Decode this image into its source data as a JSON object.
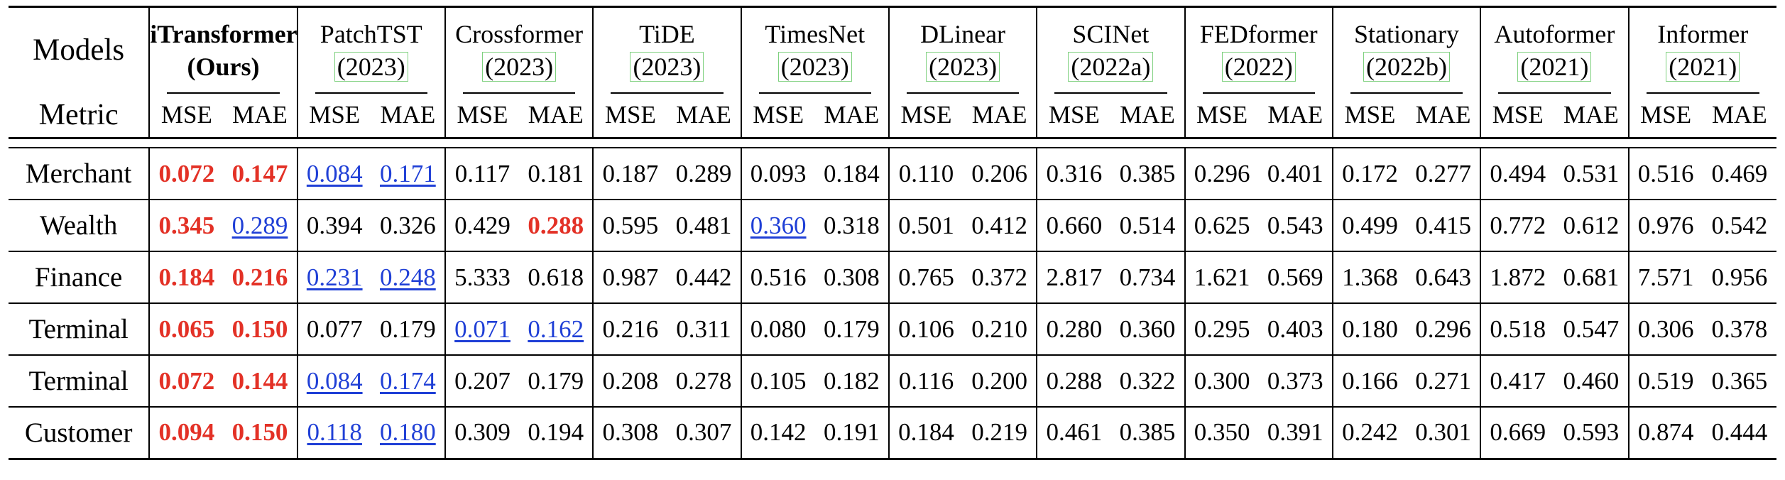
{
  "header": {
    "models_label": "Models",
    "metric_label": "Metric",
    "metric_names": [
      "MSE",
      "MAE"
    ]
  },
  "models": [
    {
      "name": "iTransformer",
      "year": "(Ours)",
      "ours": true
    },
    {
      "name": "PatchTST",
      "year": "(2023)"
    },
    {
      "name": "Crossformer",
      "year": "(2023)"
    },
    {
      "name": "TiDE",
      "year": "(2023)"
    },
    {
      "name": "TimesNet",
      "year": "(2023)"
    },
    {
      "name": "DLinear",
      "year": "(2023)"
    },
    {
      "name": "SCINet",
      "year": "(2022a)"
    },
    {
      "name": "FEDformer",
      "year": "(2022)"
    },
    {
      "name": "Stationary",
      "year": "(2022b)"
    },
    {
      "name": "Autoformer",
      "year": "(2021)"
    },
    {
      "name": "Informer",
      "year": "(2021)"
    }
  ],
  "rows": [
    {
      "dataset": "Merchant",
      "values": [
        "0.072",
        "0.147",
        "0.084",
        "0.171",
        "0.117",
        "0.181",
        "0.187",
        "0.289",
        "0.093",
        "0.184",
        "0.110",
        "0.206",
        "0.316",
        "0.385",
        "0.296",
        "0.401",
        "0.172",
        "0.277",
        "0.494",
        "0.531",
        "0.516",
        "0.469"
      ],
      "styles": [
        "best",
        "best",
        "second",
        "second",
        "",
        "",
        "",
        "",
        "",
        "",
        "",
        "",
        "",
        "",
        "",
        "",
        "",
        "",
        "",
        "",
        "",
        ""
      ]
    },
    {
      "dataset": "Wealth",
      "values": [
        "0.345",
        "0.289",
        "0.394",
        "0.326",
        "0.429",
        "0.288",
        "0.595",
        "0.481",
        "0.360",
        "0.318",
        "0.501",
        "0.412",
        "0.660",
        "0.514",
        "0.625",
        "0.543",
        "0.499",
        "0.415",
        "0.772",
        "0.612",
        "0.976",
        "0.542"
      ],
      "styles": [
        "best",
        "second",
        "",
        "",
        "",
        "best",
        "",
        "",
        "second",
        "",
        "",
        "",
        "",
        "",
        "",
        "",
        "",
        "",
        "",
        "",
        "",
        ""
      ]
    },
    {
      "dataset": "Finance",
      "values": [
        "0.184",
        "0.216",
        "0.231",
        "0.248",
        "5.333",
        "0.618",
        "0.987",
        "0.442",
        "0.516",
        "0.308",
        "0.765",
        "0.372",
        "2.817",
        "0.734",
        "1.621",
        "0.569",
        "1.368",
        "0.643",
        "1.872",
        "0.681",
        "7.571",
        "0.956"
      ],
      "styles": [
        "best",
        "best",
        "second",
        "second",
        "",
        "",
        "",
        "",
        "",
        "",
        "",
        "",
        "",
        "",
        "",
        "",
        "",
        "",
        "",
        "",
        "",
        ""
      ]
    },
    {
      "dataset": "Terminal",
      "values": [
        "0.065",
        "0.150",
        "0.077",
        "0.179",
        "0.071",
        "0.162",
        "0.216",
        "0.311",
        "0.080",
        "0.179",
        "0.106",
        "0.210",
        "0.280",
        "0.360",
        "0.295",
        "0.403",
        "0.180",
        "0.296",
        "0.518",
        "0.547",
        "0.306",
        "0.378"
      ],
      "styles": [
        "best",
        "best",
        "",
        "",
        "second",
        "second",
        "",
        "",
        "",
        "",
        "",
        "",
        "",
        "",
        "",
        "",
        "",
        "",
        "",
        "",
        "",
        ""
      ]
    },
    {
      "dataset": "Terminal",
      "values": [
        "0.072",
        "0.144",
        "0.084",
        "0.174",
        "0.207",
        "0.179",
        "0.208",
        "0.278",
        "0.105",
        "0.182",
        "0.116",
        "0.200",
        "0.288",
        "0.322",
        "0.300",
        "0.373",
        "0.166",
        "0.271",
        "0.417",
        "0.460",
        "0.519",
        "0.365"
      ],
      "styles": [
        "best",
        "best",
        "second",
        "second",
        "",
        "",
        "",
        "",
        "",
        "",
        "",
        "",
        "",
        "",
        "",
        "",
        "",
        "",
        "",
        "",
        "",
        ""
      ]
    },
    {
      "dataset": "Customer",
      "values": [
        "0.094",
        "0.150",
        "0.118",
        "0.180",
        "0.309",
        "0.194",
        "0.308",
        "0.307",
        "0.142",
        "0.191",
        "0.184",
        "0.219",
        "0.461",
        "0.385",
        "0.350",
        "0.391",
        "0.242",
        "0.301",
        "0.669",
        "0.593",
        "0.874",
        "0.444"
      ],
      "styles": [
        "best",
        "best",
        "second",
        "second",
        "",
        "",
        "",
        "",
        "",
        "",
        "",
        "",
        "",
        "",
        "",
        "",
        "",
        "",
        "",
        "",
        "",
        ""
      ]
    }
  ],
  "colors": {
    "best": "#e33126",
    "second": "#1f3fd6",
    "citation_box": "#7fd17f"
  }
}
